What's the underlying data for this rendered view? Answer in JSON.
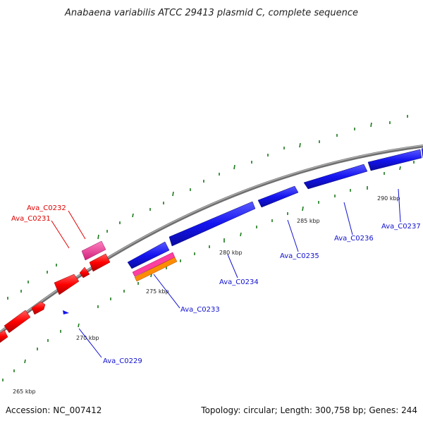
{
  "title": "Anabaena variabilis ATCC 29413 plasmid C, complete sequence",
  "footer": {
    "accession": "Accession: NC_007412",
    "summary": "Topology: circular; Length: 300,758 bp; Genes: 244"
  },
  "scale_labels": [
    "265 kbp",
    "270 kbp",
    "275 kbp",
    "280 kbp",
    "285 kbp",
    "290 kbp"
  ],
  "gene_labels": [
    {
      "text": "Ava_C0232",
      "color": "#e00000"
    },
    {
      "text": "Ava_C0231",
      "color": "#e00000"
    },
    {
      "text": "Ava_C0229",
      "color": "#1010d0"
    },
    {
      "text": "Ava_C0233",
      "color": "#1010d0"
    },
    {
      "text": "Ava_C0234",
      "color": "#1010d0"
    },
    {
      "text": "Ava_C0235",
      "color": "#1010d0"
    },
    {
      "text": "Ava_C0236",
      "color": "#1010d0"
    },
    {
      "text": "Ava_C0237",
      "color": "#1010d0"
    }
  ],
  "colors": {
    "backbone": "#8a8a8a",
    "reverse_strand": "#ff0000",
    "forward_strand": "#1414f0",
    "pink_feature": "#ff3fa0",
    "orange_feature": "#ff8c00",
    "magenta_feature": "#e0209a",
    "tick": "#1a7a1a"
  }
}
